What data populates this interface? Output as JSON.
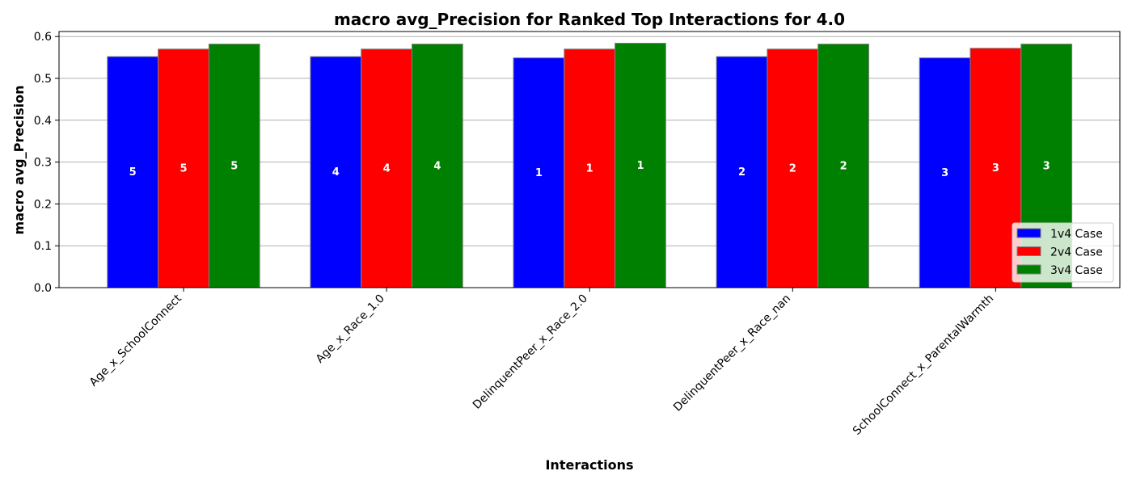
{
  "chart_data": {
    "type": "bar",
    "title": "macro avg_Precision for Ranked Top Interactions for 4.0",
    "xlabel": "Interactions",
    "ylabel": "macro avg_Precision",
    "ylim": [
      0,
      0.612
    ],
    "yticks": [
      0.0,
      0.1,
      0.2,
      0.3,
      0.4,
      0.5,
      0.6
    ],
    "ytick_labels": [
      "0.0",
      "0.1",
      "0.2",
      "0.3",
      "0.4",
      "0.5",
      "0.6"
    ],
    "grid": "horizontal",
    "legend_position": "bottom-right",
    "categories": [
      "Age_x_SchoolConnect",
      "Age_x_Race_1.0",
      "DelinquentPeer_x_Race_2.0",
      "DelinquentPeer_x_Race_nan",
      "SchoolConnect_x_ParentalWarmth"
    ],
    "series": [
      {
        "name": "1v4 Case",
        "color": "#0000ff",
        "values": [
          0.552,
          0.552,
          0.549,
          0.552,
          0.549
        ],
        "ranks": [
          "5",
          "4",
          "1",
          "2",
          "3"
        ]
      },
      {
        "name": "2v4 Case",
        "color": "#ff0000",
        "values": [
          0.57,
          0.57,
          0.57,
          0.57,
          0.572
        ],
        "ranks": [
          "5",
          "4",
          "1",
          "2",
          "3"
        ]
      },
      {
        "name": "3v4 Case",
        "color": "#008000",
        "values": [
          0.582,
          0.582,
          0.584,
          0.582,
          0.582
        ],
        "ranks": [
          "5",
          "4",
          "1",
          "2",
          "3"
        ]
      }
    ]
  }
}
